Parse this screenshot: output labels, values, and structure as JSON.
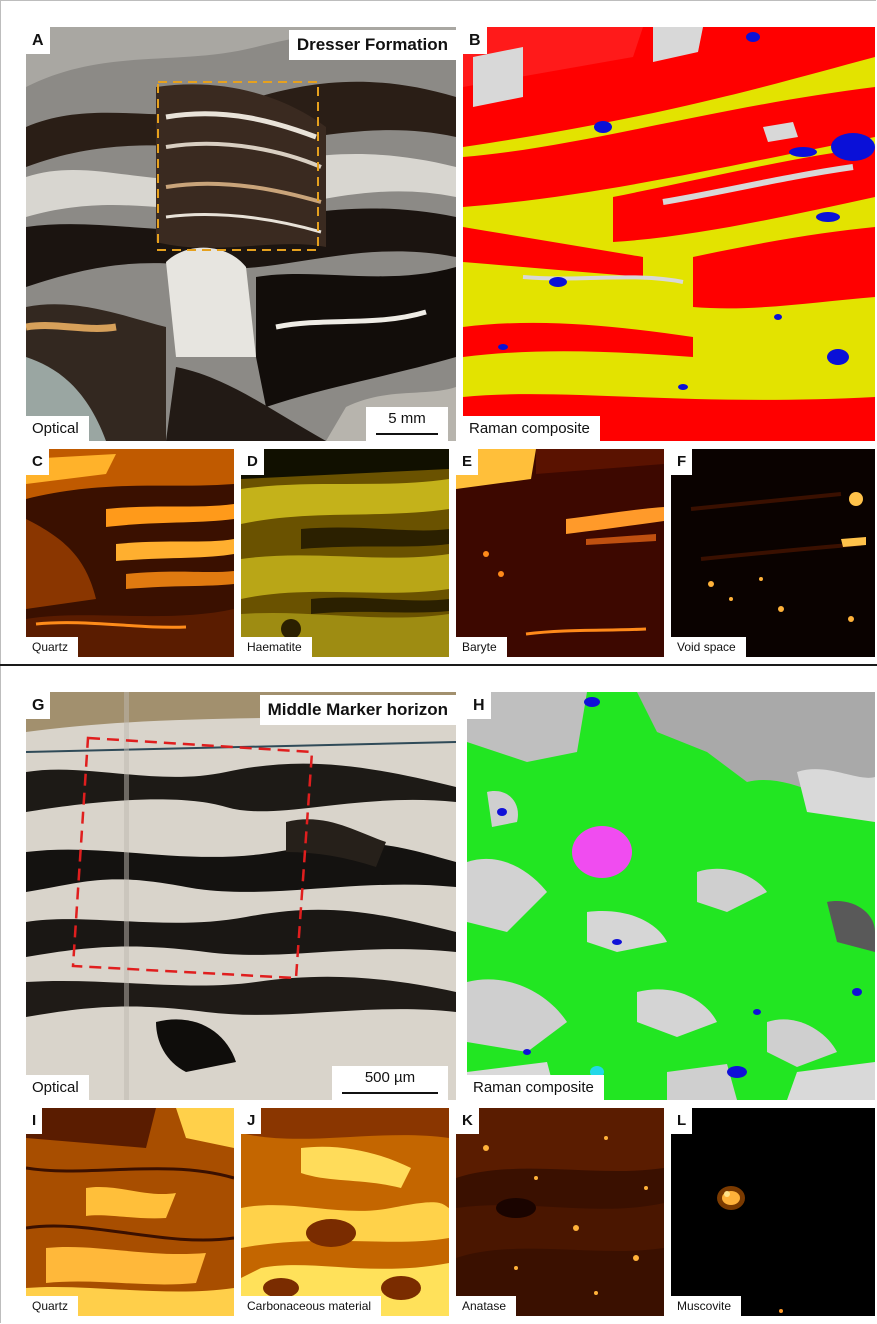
{
  "sections": [
    {
      "title": "Dresser Formation",
      "main_panels": [
        {
          "letter": "A",
          "label": "Optical",
          "scale_bar": "5 mm"
        },
        {
          "letter": "B",
          "label": "Raman composite"
        }
      ],
      "maps": [
        {
          "letter": "C",
          "label": "Quartz"
        },
        {
          "letter": "D",
          "label": "Haematite"
        },
        {
          "letter": "E",
          "label": "Baryte"
        },
        {
          "letter": "F",
          "label": "Void space"
        }
      ],
      "colors": {
        "red": "#ff0000",
        "yellow": "#e3e300",
        "blue": "#0a10d8",
        "grey": "#cfcfcf",
        "box": "#e6a11e"
      }
    },
    {
      "title": "Middle Marker horizon",
      "main_panels": [
        {
          "letter": "G",
          "label": "Optical",
          "scale_bar": "500 µm"
        },
        {
          "letter": "H",
          "label": "Raman composite"
        }
      ],
      "maps": [
        {
          "letter": "I",
          "label": "Quartz"
        },
        {
          "letter": "J",
          "label": "Carbonaceous material"
        },
        {
          "letter": "K",
          "label": "Anatase"
        },
        {
          "letter": "L",
          "label": "Muscovite"
        }
      ],
      "colors": {
        "green": "#22e622",
        "magenta": "#f04cf0",
        "blue": "#1010d8",
        "cyan": "#22d8e8",
        "box": "#e01e1e"
      }
    }
  ]
}
